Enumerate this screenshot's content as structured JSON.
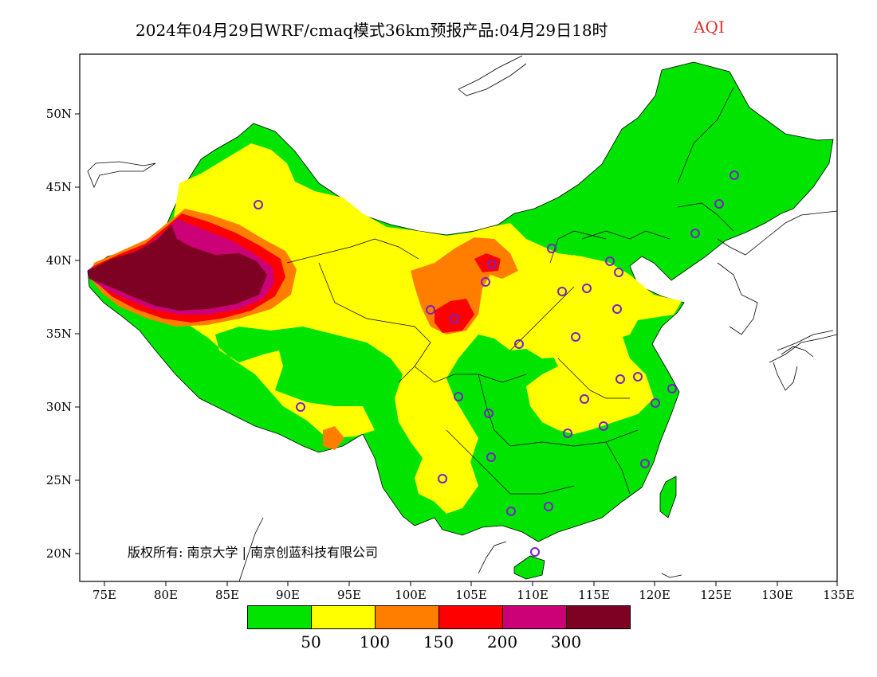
{
  "title": {
    "text": "2024年04月29日WRF/cmaq模式36km预报产品:04月29日18时",
    "variable": "AQI",
    "variable_color": "#e0302a"
  },
  "copyright": "版权所有: 南京大学 | 南京创蓝科技有限公司",
  "axes": {
    "x_ticks": [
      "75E",
      "80E",
      "85E",
      "90E",
      "95E",
      "100E",
      "105E",
      "110E",
      "115E",
      "120E",
      "125E",
      "130E",
      "135E"
    ],
    "y_ticks": [
      "50N",
      "45N",
      "40N",
      "35N",
      "30N",
      "25N",
      "20N"
    ]
  },
  "legend": {
    "colors": [
      "#00e400",
      "#ffff00",
      "#ff7e00",
      "#ff0000",
      "#cc0077",
      "#7e0023"
    ],
    "labels": [
      "50",
      "100",
      "150",
      "200",
      "300"
    ]
  },
  "colors": {
    "good": "#00e400",
    "moderate": "#ffff00",
    "usg": "#ff7e00",
    "unhealthy": "#ff0000",
    "very_unhealthy": "#cc0077",
    "hazardous": "#7e0023",
    "station_ring": "#7a20c8"
  }
}
